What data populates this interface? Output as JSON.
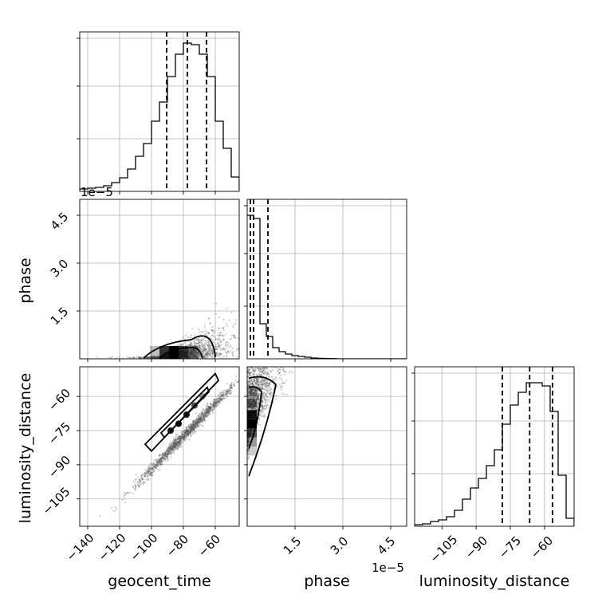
{
  "chart_data": [
    {
      "type": "histogram",
      "panel": "geocent_time",
      "xlim": [
        -145,
        -45
      ],
      "ylim": [
        0,
        1
      ],
      "grid": true,
      "bins": [
        -145,
        -140,
        -135,
        -130,
        -125,
        -120,
        -115,
        -110,
        -105,
        -100,
        -95,
        -90,
        -85,
        -80,
        -75,
        -70,
        -65,
        -60,
        -55,
        -50,
        -45
      ],
      "counts": [
        0.015,
        0.02,
        0.025,
        0.035,
        0.055,
        0.085,
        0.14,
        0.22,
        0.3,
        0.44,
        0.56,
        0.72,
        0.86,
        0.93,
        0.92,
        0.86,
        0.72,
        0.44,
        0.27,
        0.09,
        0.01
      ],
      "quantile_lines": [
        -90.5,
        -77.5,
        -65.5
      ]
    },
    {
      "type": "scatter",
      "panel": "phase vs geocent_time",
      "x_label": "",
      "y_label": "phase",
      "xlim": [
        -145,
        -45
      ],
      "ylim": [
        0,
        5.0
      ],
      "y_ticks": [
        "1.5",
        "3.0",
        "4.5"
      ],
      "y_offset": "1e−5",
      "grid": true,
      "density": "concentrated near phase ≈ 0.1–0.3 around geocent_time ≈ -85; scatter fans upward toward geocent_time ≈ -60"
    },
    {
      "type": "histogram",
      "panel": "phase",
      "xlim": [
        0,
        5.0
      ],
      "ylim": [
        0,
        1
      ],
      "grid": true,
      "bins": [
        0,
        0.2,
        0.4,
        0.6,
        0.8,
        1.0,
        1.2,
        1.4,
        1.6,
        1.8,
        2.0,
        2.2,
        2.4,
        2.6,
        2.8,
        3.0,
        3.2,
        3.4,
        3.6,
        3.8,
        4.0,
        4.2,
        4.4,
        4.6,
        4.8,
        5.0
      ],
      "counts": [
        0.9,
        0.88,
        0.22,
        0.14,
        0.07,
        0.045,
        0.03,
        0.02,
        0.015,
        0.01,
        0.005,
        0.003,
        0.002,
        0.001,
        0,
        0,
        0,
        0,
        0,
        0,
        0,
        0,
        0,
        0,
        0
      ],
      "quantile_lines": [
        0.1,
        0.2,
        0.65
      ]
    },
    {
      "type": "scatter",
      "panel": "luminosity_distance vs geocent_time",
      "x_label": "geocent_time",
      "y_label": "luminosity_distance",
      "xlim": [
        -145,
        -45
      ],
      "ylim": [
        -117,
        -47
      ],
      "x_ticks": [
        "−140",
        "−120",
        "−100",
        "−80",
        "−60"
      ],
      "y_ticks": [
        "−105",
        "−90",
        "−75",
        "−60"
      ],
      "grid": true,
      "density": "strong linear correlation, luminosity_distance increases with geocent_time"
    },
    {
      "type": "scatter",
      "panel": "luminosity_distance vs phase",
      "x_label": "phase",
      "xlim": [
        0,
        5.0
      ],
      "ylim": [
        -117,
        -47
      ],
      "x_ticks": [
        "1.5",
        "3.0",
        "4.5"
      ],
      "x_offset": "1e−5",
      "grid": true,
      "density": "concentrated near phase ≈ 0.1–0.3, luminosity_distance ≈ -70; spreads rightward near luminosity_distance ≈ -50"
    },
    {
      "type": "histogram",
      "panel": "luminosity_distance",
      "x_label": "luminosity_distance",
      "xlim": [
        -117,
        -47
      ],
      "ylim": [
        0,
        1
      ],
      "x_ticks": [
        "−105",
        "−90",
        "−75",
        "−60"
      ],
      "grid": true,
      "bins": [
        -117,
        -113.5,
        -110,
        -106.5,
        -103,
        -99.5,
        -96,
        -92.5,
        -89,
        -85.5,
        -82,
        -78.5,
        -75,
        -71.5,
        -68,
        -64.5,
        -61,
        -57.5,
        -54,
        -50.5,
        -47
      ],
      "counts": [
        0.01,
        0.015,
        0.03,
        0.04,
        0.06,
        0.1,
        0.17,
        0.24,
        0.3,
        0.38,
        0.48,
        0.64,
        0.76,
        0.84,
        0.9,
        0.9,
        0.88,
        0.72,
        0.32,
        0.05,
        0.0
      ],
      "quantile_lines": [
        -78.5,
        -66.5,
        -56.5
      ]
    }
  ]
}
